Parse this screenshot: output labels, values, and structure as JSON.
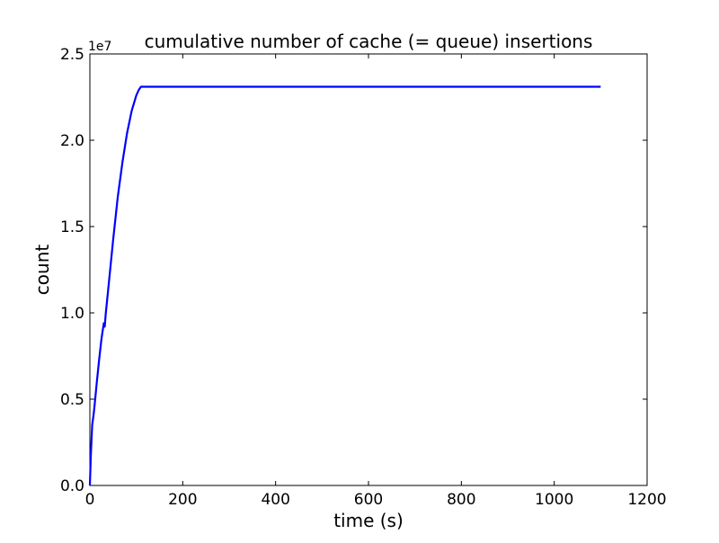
{
  "chart_data": {
    "type": "line",
    "title": "cumulative number of cache (= queue) insertions",
    "xlabel": "time (s)",
    "ylabel": "count",
    "y_multiplier_label": "1e7",
    "y_multiplier": 10000000,
    "xlim": [
      0,
      1200
    ],
    "ylim": [
      0,
      25000000
    ],
    "xticks": [
      0,
      200,
      400,
      600,
      800,
      1000,
      1200
    ],
    "xtick_labels": [
      "0",
      "200",
      "400",
      "600",
      "800",
      "1000",
      "1200"
    ],
    "yticks": [
      0,
      5000000,
      10000000,
      15000000,
      20000000,
      25000000
    ],
    "ytick_labels": [
      "0.0",
      "0.5",
      "1.0",
      "1.5",
      "2.0",
      "2.5"
    ],
    "grid": false,
    "legend": "none",
    "series": [
      {
        "color": "#0000ff",
        "x": [
          0,
          2,
          5,
          8,
          10,
          15,
          20,
          25,
          30,
          32,
          34,
          40,
          50,
          60,
          70,
          80,
          90,
          100,
          105,
          110,
          115,
          200,
          400,
          600,
          800,
          1000,
          1100
        ],
        "y": [
          0,
          1700000,
          3500000,
          4100000,
          4600000,
          6000000,
          7300000,
          8500000,
          9400000,
          9200000,
          9900000,
          11500000,
          14200000,
          16700000,
          18700000,
          20400000,
          21700000,
          22600000,
          22900000,
          23100000,
          23100000,
          23100000,
          23100000,
          23100000,
          23100000,
          23100000,
          23100000
        ]
      }
    ]
  }
}
